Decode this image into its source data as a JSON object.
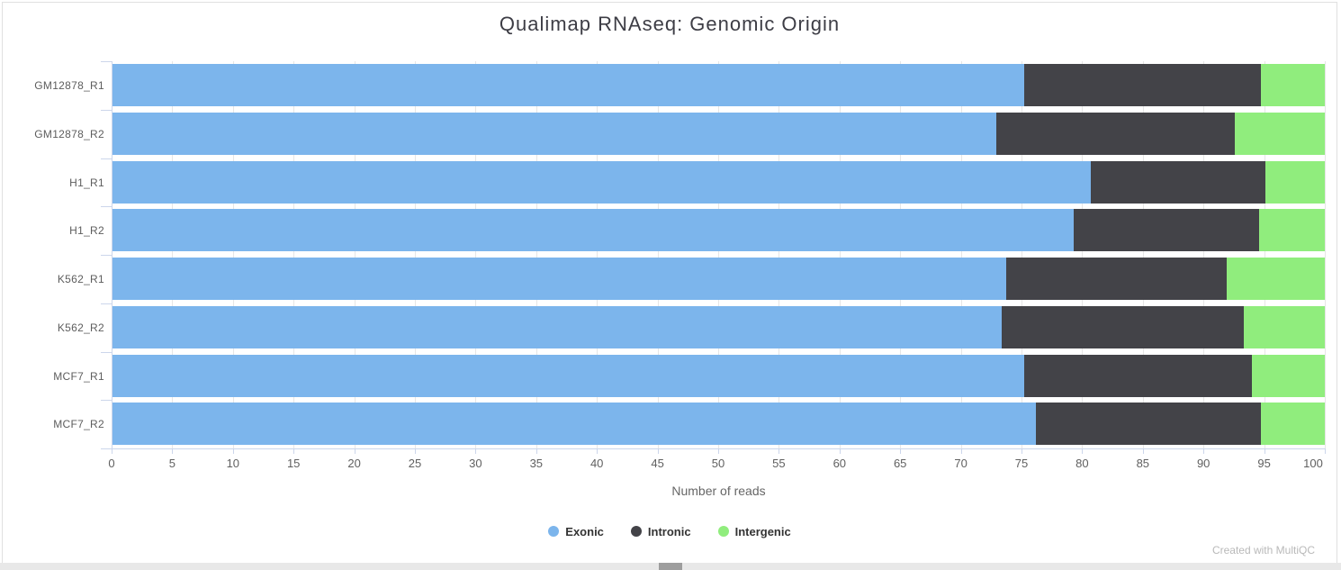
{
  "credit": "Created with MultiQC",
  "chart_data": {
    "type": "bar",
    "orientation": "horizontal",
    "stacked": true,
    "stack_unit": "percent",
    "title": "Qualimap RNAseq: Genomic Origin",
    "xlabel": "Number of reads",
    "xlim": [
      0,
      100
    ],
    "x_ticks": [
      0,
      5,
      10,
      15,
      20,
      25,
      30,
      35,
      40,
      45,
      50,
      55,
      60,
      65,
      70,
      75,
      80,
      85,
      90,
      95,
      100
    ],
    "grid": true,
    "legend_position": "bottom",
    "categories": [
      "GM12878_R1",
      "GM12878_R2",
      "H1_R1",
      "H1_R2",
      "K562_R1",
      "K562_R2",
      "MCF7_R1",
      "MCF7_R2"
    ],
    "series": [
      {
        "name": "Exonic",
        "color": "#7cb5ec",
        "values": [
          75.2,
          72.9,
          80.7,
          79.3,
          73.7,
          73.4,
          75.2,
          76.2
        ]
      },
      {
        "name": "Intronic",
        "color": "#434348",
        "values": [
          19.5,
          19.7,
          14.4,
          15.3,
          18.2,
          19.9,
          18.8,
          18.5
        ]
      },
      {
        "name": "Intergenic",
        "color": "#90ed7d",
        "values": [
          5.3,
          7.4,
          4.9,
          5.4,
          8.1,
          6.7,
          6.0,
          5.3
        ]
      }
    ]
  }
}
